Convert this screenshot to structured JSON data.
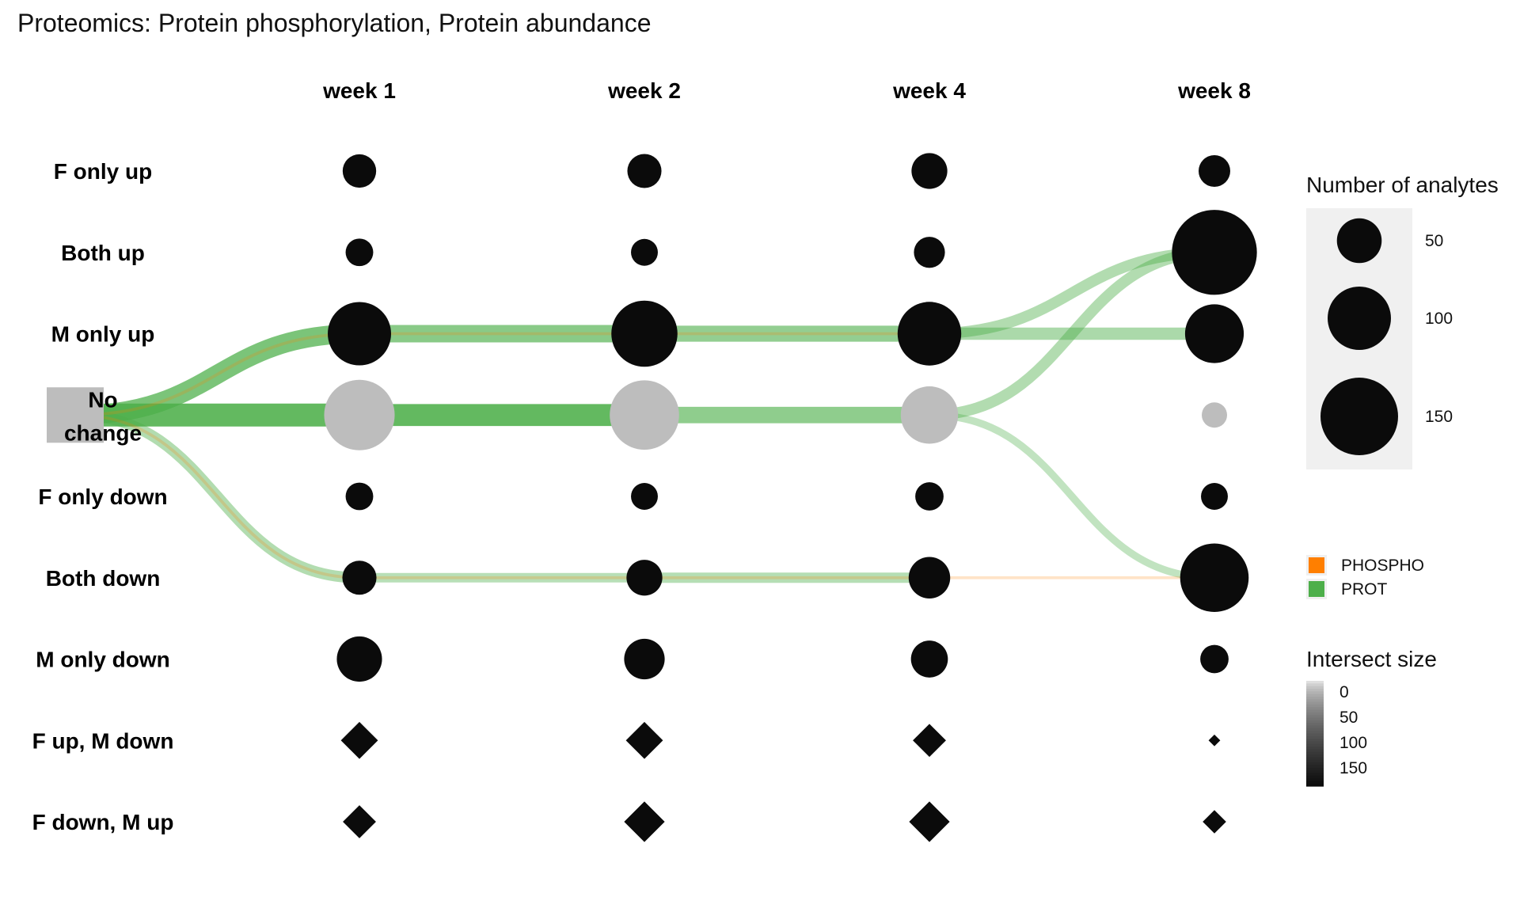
{
  "chart_data": {
    "type": "flow-bubble",
    "title": "Proteomics: Protein phosphorylation, Protein abundance",
    "columns": [
      "week 1",
      "week 2",
      "week 4",
      "week 8"
    ],
    "rows": [
      "F only up",
      "Both up",
      "M only up",
      "No change",
      "F only down",
      "Both down",
      "M only down",
      "F up, M down",
      "F down, M up"
    ],
    "start_node": {
      "row": "No change",
      "label_lines": [
        "No",
        "change"
      ]
    },
    "nodes": [
      {
        "row": "F only up",
        "shape": "circle",
        "values": [
          28,
          29,
          32,
          25
        ]
      },
      {
        "row": "Both up",
        "shape": "circle",
        "values": [
          19,
          18,
          24,
          180
        ]
      },
      {
        "row": "M only up",
        "shape": "circle",
        "values": [
          100,
          109,
          101,
          86
        ]
      },
      {
        "row": "No change",
        "shape": "circle",
        "values": [
          124,
          120,
          82,
          16
        ],
        "grey": true
      },
      {
        "row": "F only down",
        "shape": "circle",
        "values": [
          19,
          18,
          20,
          18
        ]
      },
      {
        "row": "Both down",
        "shape": "circle",
        "values": [
          29,
          32,
          43,
          117
        ]
      },
      {
        "row": "M only down",
        "shape": "circle",
        "values": [
          51,
          41,
          34,
          20
        ]
      },
      {
        "row": "F up, M down",
        "shape": "diamond",
        "values": [
          10,
          10,
          8,
          1
        ]
      },
      {
        "row": "F down, M up",
        "shape": "diamond",
        "values": [
          8,
          12,
          12,
          4
        ]
      }
    ],
    "flows": [
      {
        "series": "PROT",
        "from_col": 0,
        "from_row": "No change",
        "to_col": 1,
        "to_row": "M only up",
        "size": 120
      },
      {
        "series": "PROT",
        "from_col": 0,
        "from_row": "No change",
        "to_col": 1,
        "to_row": "No change",
        "size": 175
      },
      {
        "series": "PROT",
        "from_col": 0,
        "from_row": "No change",
        "to_col": 1,
        "to_row": "Both down",
        "size": 40
      },
      {
        "series": "PROT",
        "from_col": 1,
        "from_row": "M only up",
        "to_col": 2,
        "to_row": "M only up",
        "size": 100
      },
      {
        "series": "PROT",
        "from_col": 1,
        "from_row": "No change",
        "to_col": 2,
        "to_row": "No change",
        "size": 160
      },
      {
        "series": "PROT",
        "from_col": 1,
        "from_row": "Both down",
        "to_col": 2,
        "to_row": "Both down",
        "size": 30
      },
      {
        "series": "PROT",
        "from_col": 2,
        "from_row": "M only up",
        "to_col": 3,
        "to_row": "M only up",
        "size": 85
      },
      {
        "series": "PROT",
        "from_col": 2,
        "from_row": "No change",
        "to_col": 3,
        "to_row": "No change",
        "size": 90
      },
      {
        "series": "PROT",
        "from_col": 2,
        "from_row": "Both down",
        "to_col": 3,
        "to_row": "Both down",
        "size": 35
      },
      {
        "series": "PROT",
        "from_col": 3,
        "from_row": "M only up",
        "to_col": 4,
        "to_row": "Both up",
        "size": 40
      },
      {
        "series": "PROT",
        "from_col": 3,
        "from_row": "M only up",
        "to_col": 4,
        "to_row": "M only up",
        "size": 50
      },
      {
        "series": "PROT",
        "from_col": 3,
        "from_row": "No change",
        "to_col": 4,
        "to_row": "Both up",
        "size": 40
      },
      {
        "series": "PROT",
        "from_col": 3,
        "from_row": "No change",
        "to_col": 4,
        "to_row": "Both down",
        "size": 18
      },
      {
        "series": "PHOSPHO",
        "from_col": 0,
        "from_row": "No change",
        "to_col": 1,
        "to_row": "Both down",
        "size": 3
      },
      {
        "series": "PHOSPHO",
        "from_col": 0,
        "from_row": "No change",
        "to_col": 1,
        "to_row": "M only up",
        "size": 3
      },
      {
        "series": "PHOSPHO",
        "from_col": 1,
        "from_row": "M only up",
        "to_col": 2,
        "to_row": "M only up",
        "size": 3
      },
      {
        "series": "PHOSPHO",
        "from_col": 2,
        "from_row": "M only up",
        "to_col": 3,
        "to_row": "M only up",
        "size": 3
      },
      {
        "series": "PHOSPHO",
        "from_col": 1,
        "from_row": "Both down",
        "to_col": 2,
        "to_row": "Both down",
        "size": 3
      },
      {
        "series": "PHOSPHO",
        "from_col": 2,
        "from_row": "Both down",
        "to_col": 3,
        "to_row": "Both down",
        "size": 3
      },
      {
        "series": "PHOSPHO",
        "from_col": 3,
        "from_row": "Both down",
        "to_col": 4,
        "to_row": "Both down",
        "size": 3
      }
    ],
    "legend_size": {
      "title": "Number of analytes",
      "values": [
        50,
        100,
        150
      ],
      "labels": [
        "50",
        "100",
        "150"
      ]
    },
    "legend_series": [
      {
        "name": "PHOSPHO",
        "color": "#FF7F00"
      },
      {
        "name": "PROT",
        "color": "#4DAF4A"
      }
    ],
    "legend_intersect": {
      "title": "Intersect size",
      "values": [
        0,
        50,
        100,
        150
      ],
      "labels": [
        "0",
        "50",
        "100",
        "150"
      ]
    }
  },
  "colors": {
    "node": "#0b0b0b",
    "no_change_node": "#bdbdbd",
    "start_node": "#bdbdbd",
    "legend_panel": "#f0f0f0"
  }
}
